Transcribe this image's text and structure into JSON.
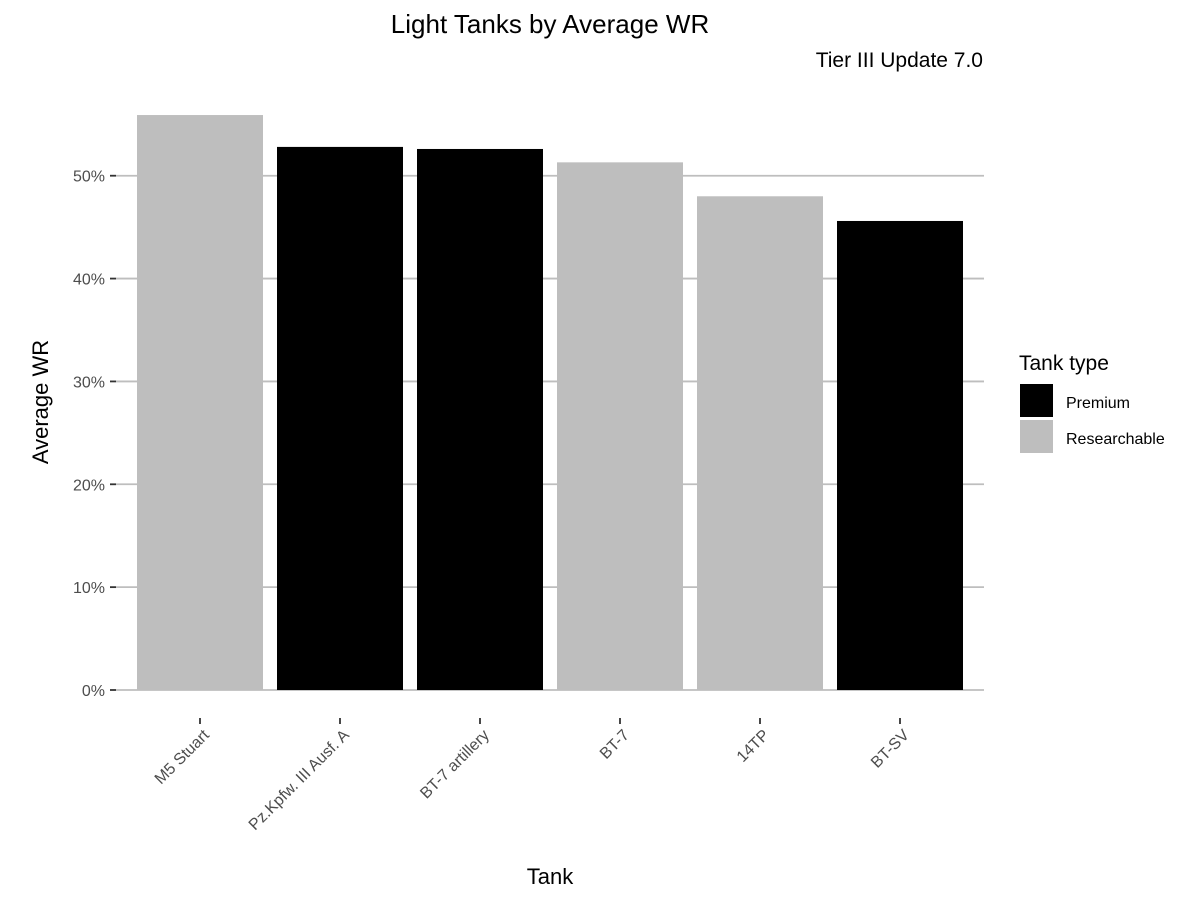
{
  "chart_data": {
    "type": "bar",
    "title": "Light Tanks by Average WR",
    "subtitle": "Tier III Update 7.0",
    "xlabel": "Tank",
    "ylabel": "Average WR",
    "categories": [
      "M5 Stuart",
      "Pz.Kpfw. III Ausf. A",
      "BT-7 artillery",
      "BT-7",
      "14TP",
      "BT-SV"
    ],
    "values": [
      0.559,
      0.528,
      0.526,
      0.513,
      0.48,
      0.456
    ],
    "groups": [
      "Researchable",
      "Premium",
      "Premium",
      "Researchable",
      "Researchable",
      "Premium"
    ],
    "ylim": [
      0,
      0.56
    ],
    "yticks": [
      0,
      0.1,
      0.2,
      0.3,
      0.4,
      0.5
    ],
    "ytick_labels": [
      "0%",
      "10%",
      "20%",
      "30%",
      "40%",
      "50%"
    ],
    "grid": true,
    "legend": {
      "title": "Tank type",
      "position": "right",
      "entries": [
        {
          "label": "Premium",
          "color": "#000000"
        },
        {
          "label": "Researchable",
          "color": "#bebebe"
        }
      ]
    },
    "colors": {
      "Premium": "#000000",
      "Researchable": "#bebebe",
      "grid": "#bebebe",
      "tick": "#333333"
    }
  }
}
